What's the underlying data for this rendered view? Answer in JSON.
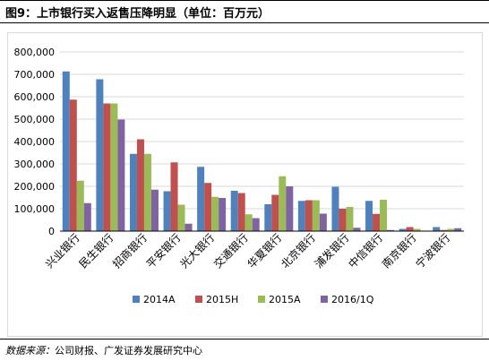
{
  "header": {
    "title": "图9：上市银行买入返售压降明显（单位：百万元）"
  },
  "footer": {
    "source_label": "数据来源：",
    "source_text": "公司财报、广发证券发展研究中心"
  },
  "colors": {
    "2014A": "#4f81bd",
    "2015H": "#c0504d",
    "2015A": "#9bbb59",
    "2016/1Q": "#8064a2",
    "grid": "#d9d9d9",
    "axis": "#000000"
  },
  "chart_data": {
    "type": "bar",
    "title": "",
    "xlabel": "",
    "ylabel": "",
    "ylim": [
      0,
      800000
    ],
    "yticks": [
      0,
      100000,
      200000,
      300000,
      400000,
      500000,
      600000,
      700000,
      800000
    ],
    "ytick_labels": [
      "0",
      "100,000",
      "200,000",
      "300,000",
      "400,000",
      "500,000",
      "600,000",
      "700,000",
      "800,000"
    ],
    "grid": true,
    "legend_position": "bottom",
    "categories": [
      "兴业银行",
      "民生银行",
      "招商银行",
      "平安银行",
      "光大银行",
      "交通银行",
      "华夏银行",
      "北京银行",
      "浦发银行",
      "中信银行",
      "南京银行",
      "宁波银行"
    ],
    "series": [
      {
        "name": "2014A",
        "values": [
          713000,
          678000,
          345000,
          178000,
          287000,
          180000,
          120000,
          135000,
          198000,
          135000,
          10000,
          18000
        ]
      },
      {
        "name": "2015H",
        "values": [
          587000,
          570000,
          410000,
          307000,
          215000,
          170000,
          162000,
          138000,
          100000,
          77000,
          18000,
          5000
        ]
      },
      {
        "name": "2015A",
        "values": [
          225000,
          570000,
          345000,
          118000,
          153000,
          75000,
          245000,
          138000,
          108000,
          140000,
          10000,
          10000
        ]
      },
      {
        "name": "2016/1Q",
        "values": [
          125000,
          498000,
          185000,
          33000,
          148000,
          58000,
          200000,
          78000,
          15000,
          5000,
          0,
          13000
        ]
      }
    ]
  }
}
